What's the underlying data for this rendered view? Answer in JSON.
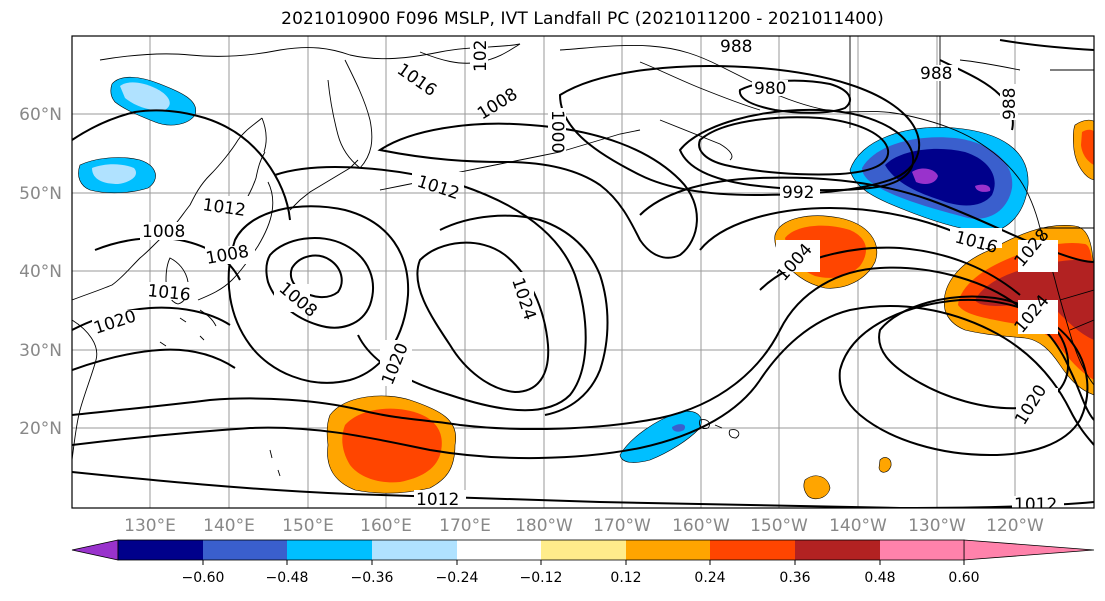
{
  "title": "2021010900 F096 MSLP, IVT Landfall PC (2021011200 - 2021011400)",
  "map": {
    "lat_labels": [
      "60°N",
      "50°N",
      "40°N",
      "30°N",
      "20°N"
    ],
    "lon_labels": [
      "130°E",
      "140°E",
      "150°E",
      "160°E",
      "170°E",
      "180°W",
      "170°W",
      "160°W",
      "150°W",
      "140°W",
      "130°W",
      "120°W"
    ],
    "contour_labels": [
      "988",
      "980",
      "988",
      "988",
      "102",
      "1016",
      "1008",
      "1000",
      "1012",
      "992",
      "1012",
      "1008",
      "1008",
      "1016",
      "1008",
      "1024",
      "1004",
      "1016",
      "1028",
      "1024",
      "1020",
      "1020",
      "1020",
      "1012",
      "1012"
    ]
  },
  "colorbar": {
    "tick_labels": [
      "−0.60",
      "−0.48",
      "−0.36",
      "−0.24",
      "−0.12",
      "0.12",
      "0.24",
      "0.36",
      "0.48",
      "0.60"
    ],
    "colors": [
      "#9932cc",
      "#00008b",
      "#3a5fcd",
      "#00bfff",
      "#b0e2ff",
      "#ffffff",
      "#ffec8b",
      "#ffa500",
      "#ff4500",
      "#b22222",
      "#ff82ab"
    ]
  }
}
